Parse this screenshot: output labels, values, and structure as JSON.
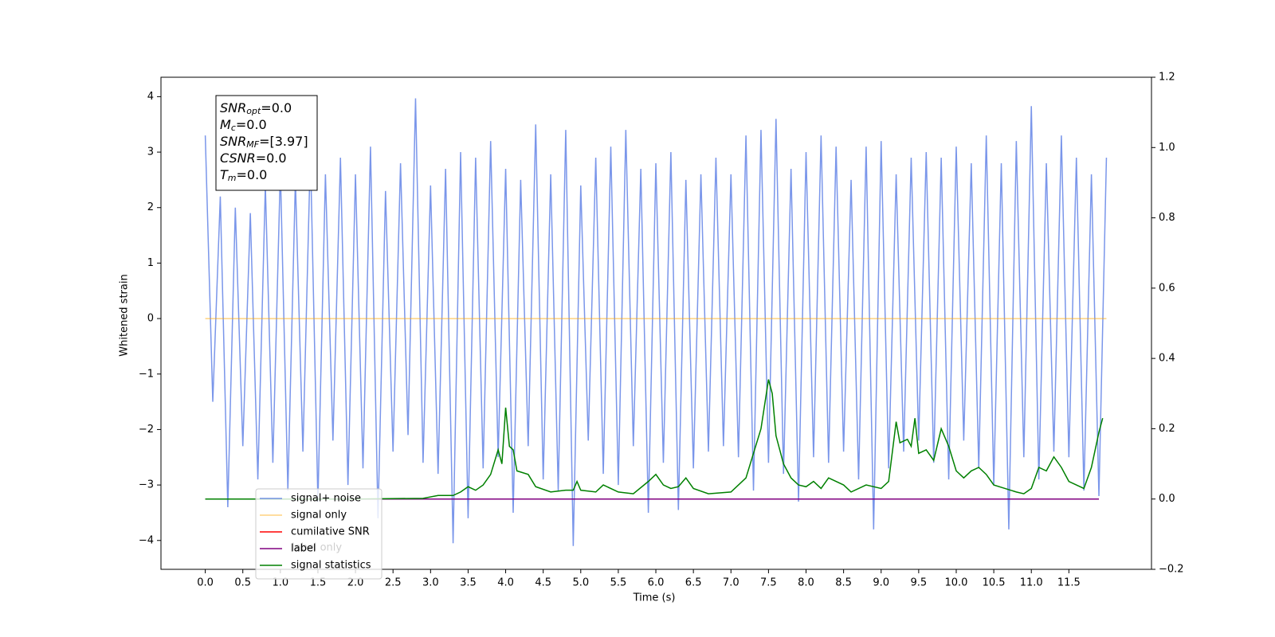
{
  "chart_data": {
    "type": "line",
    "xlabel": "Time (s)",
    "ylabel": "Whitened strain",
    "xlim": [
      -0.59,
      12.6
    ],
    "ylim": [
      -4.52,
      4.35
    ],
    "y2lim": [
      -0.2,
      1.2
    ],
    "xticks": [
      {
        "value": 0,
        "label": "0.0"
      },
      0.5,
      {
        "value": 1,
        "label": "1.0"
      },
      1.5,
      {
        "value": 2,
        "label": "2.0"
      },
      2.5,
      {
        "value": 3,
        "label": "3.0"
      },
      3.5,
      {
        "value": 4,
        "label": "4.0"
      },
      4.5,
      {
        "value": 5,
        "label": "5.0"
      },
      5.5,
      {
        "value": 6,
        "label": "6.0"
      },
      6.5,
      {
        "value": 7,
        "label": "7.0"
      },
      7.5,
      {
        "value": 8,
        "label": "8.0"
      },
      8.5,
      {
        "value": 9,
        "label": "9.0"
      },
      9.5,
      {
        "value": 10,
        "label": "10.0"
      },
      10.5,
      {
        "value": 11,
        "label": "11.0"
      },
      11.5
    ],
    "yticks": [
      {
        "value": -4,
        "label": "−4"
      },
      {
        "value": -3,
        "label": "−3"
      },
      {
        "value": -2,
        "label": "−2"
      },
      {
        "value": -1,
        "label": "−1"
      },
      0,
      1,
      2,
      3,
      4
    ],
    "y2ticks": [
      {
        "value": -0.2,
        "label": "−0.2"
      },
      {
        "value": 0,
        "label": "0.0"
      },
      0.2,
      0.4,
      0.6,
      0.8,
      {
        "value": 1,
        "label": "1.0"
      },
      1.2
    ],
    "grid": false,
    "legend": "lower left",
    "annotation": "label only",
    "textbox": [
      {
        "base": "SNR",
        "sub": "opt",
        "rest": "=0.0"
      },
      {
        "base": "M",
        "sub": "c",
        "rest": "=0.0"
      },
      {
        "base": "SNR",
        "sub": "MF",
        "rest": "=[3.97]"
      },
      {
        "base": "CSNR",
        "sub": null,
        "rest": "=0.0"
      },
      {
        "base": "T",
        "sub": "m",
        "rest": "=0.0"
      }
    ],
    "series": [
      {
        "name": "signal+ noise",
        "color": "#4169e1",
        "alpha": 0.7,
        "x": [
          0,
          0.1,
          0.2,
          0.3,
          0.4,
          0.5,
          0.6,
          0.7,
          0.8,
          0.9,
          1,
          1.1,
          1.2,
          1.3,
          1.4,
          1.5,
          1.6,
          1.7,
          1.8,
          1.9,
          2,
          2.1,
          2.2,
          2.3,
          2.4,
          2.5,
          2.6,
          2.7,
          2.8,
          2.9,
          3,
          3.1,
          3.2,
          3.3,
          3.4,
          3.5,
          3.6,
          3.7,
          3.8,
          3.9,
          4,
          4.1,
          4.2,
          4.3,
          4.4,
          4.5,
          4.6,
          4.7,
          4.8,
          4.9,
          5,
          5.1,
          5.2,
          5.3,
          5.4,
          5.5,
          5.6,
          5.7,
          5.8,
          5.9,
          6,
          6.1,
          6.2,
          6.3,
          6.4,
          6.5,
          6.6,
          6.7,
          6.8,
          6.9,
          7,
          7.1,
          7.2,
          7.3,
          7.4,
          7.5,
          7.6,
          7.7,
          7.8,
          7.9,
          8,
          8.1,
          8.2,
          8.3,
          8.4,
          8.5,
          8.6,
          8.7,
          8.8,
          8.9,
          9,
          9.1,
          9.2,
          9.3,
          9.4,
          9.5,
          9.6,
          9.7,
          9.8,
          9.9,
          10,
          10.1,
          10.2,
          10.3,
          10.4,
          10.5,
          10.6,
          10.7,
          10.8,
          10.9,
          11,
          11.1,
          11.2,
          11.3,
          11.4,
          11.5,
          11.6,
          11.7,
          11.8,
          11.9,
          12
        ],
        "values": [
          3.3,
          -1.5,
          2.2,
          -3.4,
          2.0,
          -2.3,
          1.9,
          -2.9,
          2.4,
          -2.6,
          2.7,
          -3.1,
          2.5,
          -2.4,
          3.0,
          -3.3,
          2.6,
          -2.2,
          2.9,
          -3.0,
          2.6,
          -2.7,
          3.1,
          -3.6,
          2.3,
          -2.4,
          2.8,
          -2.1,
          3.97,
          -2.6,
          2.4,
          -2.8,
          2.7,
          -4.05,
          3.0,
          -3.6,
          2.9,
          -2.7,
          3.2,
          -2.5,
          2.7,
          -3.5,
          2.5,
          -2.3,
          3.5,
          -2.9,
          2.6,
          -3.1,
          3.4,
          -4.1,
          2.4,
          -2.2,
          2.9,
          -2.8,
          3.1,
          -3.0,
          3.4,
          -2.3,
          2.7,
          -3.5,
          2.8,
          -2.6,
          3.0,
          -3.45,
          2.5,
          -2.7,
          2.6,
          -2.4,
          2.9,
          -2.3,
          2.6,
          -2.5,
          3.3,
          -3.1,
          3.4,
          -2.6,
          3.6,
          -2.8,
          2.7,
          -3.3,
          3.0,
          -2.5,
          3.3,
          -2.6,
          3.1,
          -2.4,
          2.5,
          -2.9,
          3.1,
          -3.8,
          3.2,
          -2.7,
          2.6,
          -2.4,
          2.9,
          -2.2,
          3.0,
          -2.6,
          2.9,
          -2.9,
          3.1,
          -2.2,
          2.8,
          -2.7,
          3.3,
          -3.0,
          2.8,
          -3.8,
          3.2,
          -2.5,
          3.83,
          -2.9,
          2.8,
          -2.4,
          3.3,
          -2.5,
          2.9,
          -3.1,
          2.6,
          -3.2,
          2.9
        ]
      },
      {
        "name": "signal only",
        "color": "#ffa500",
        "alpha": 0.5,
        "x": [
          0,
          12
        ],
        "values": [
          0,
          0
        ]
      },
      {
        "name": "cumilative SNR",
        "color": "#ff0000",
        "alpha": 1,
        "x": [],
        "values": []
      },
      {
        "name": "label",
        "color": "#800080",
        "alpha": 1,
        "axis": "y2",
        "x": [
          0,
          11.9
        ],
        "values": [
          0,
          0
        ]
      },
      {
        "name": "signal statistics",
        "color": "#008000",
        "alpha": 1,
        "axis": "y2",
        "x": [
          0,
          2.0,
          2.9,
          3.1,
          3.3,
          3.4,
          3.5,
          3.6,
          3.7,
          3.8,
          3.9,
          3.95,
          4.0,
          4.05,
          4.1,
          4.15,
          4.3,
          4.4,
          4.6,
          4.8,
          4.9,
          4.95,
          5.0,
          5.2,
          5.3,
          5.5,
          5.7,
          5.9,
          6.0,
          6.1,
          6.2,
          6.3,
          6.4,
          6.5,
          6.7,
          7.0,
          7.1,
          7.2,
          7.3,
          7.4,
          7.5,
          7.55,
          7.6,
          7.7,
          7.8,
          7.9,
          8.0,
          8.1,
          8.2,
          8.3,
          8.5,
          8.6,
          8.8,
          9.0,
          9.1,
          9.2,
          9.25,
          9.35,
          9.4,
          9.45,
          9.5,
          9.6,
          9.7,
          9.8,
          9.9,
          10.0,
          10.1,
          10.2,
          10.3,
          10.4,
          10.5,
          10.8,
          10.9,
          11.0,
          11.1,
          11.2,
          11.3,
          11.4,
          11.5,
          11.7,
          11.8,
          11.9,
          11.95
        ],
        "values": [
          0,
          0,
          0.002,
          0.01,
          0.01,
          0.02,
          0.035,
          0.025,
          0.04,
          0.07,
          0.14,
          0.1,
          0.26,
          0.15,
          0.14,
          0.08,
          0.07,
          0.035,
          0.02,
          0.025,
          0.025,
          0.05,
          0.025,
          0.02,
          0.04,
          0.02,
          0.015,
          0.05,
          0.07,
          0.04,
          0.03,
          0.035,
          0.06,
          0.03,
          0.015,
          0.02,
          0.04,
          0.06,
          0.13,
          0.2,
          0.34,
          0.3,
          0.18,
          0.1,
          0.06,
          0.04,
          0.035,
          0.05,
          0.03,
          0.06,
          0.04,
          0.02,
          0.04,
          0.03,
          0.05,
          0.22,
          0.16,
          0.17,
          0.15,
          0.23,
          0.13,
          0.14,
          0.11,
          0.2,
          0.15,
          0.08,
          0.06,
          0.08,
          0.09,
          0.07,
          0.04,
          0.02,
          0.015,
          0.03,
          0.09,
          0.08,
          0.12,
          0.09,
          0.05,
          0.03,
          0.09,
          0.19,
          0.23
        ]
      }
    ]
  }
}
